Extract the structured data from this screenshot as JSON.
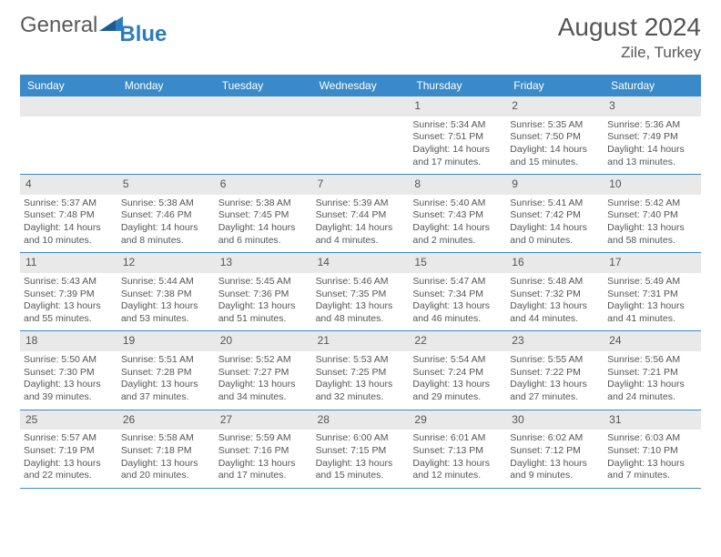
{
  "logo": {
    "text_general": "General",
    "text_blue": "Blue"
  },
  "header": {
    "month_title": "August 2024",
    "location": "Zile, Turkey"
  },
  "colors": {
    "header_bar": "#3a8ac9",
    "header_text": "#ffffff",
    "daynum_bg": "#e9e9e9",
    "body_text": "#555555",
    "rule": "#3a8ac9"
  },
  "day_names": [
    "Sunday",
    "Monday",
    "Tuesday",
    "Wednesday",
    "Thursday",
    "Friday",
    "Saturday"
  ],
  "weeks": [
    [
      {
        "empty": true
      },
      {
        "empty": true
      },
      {
        "empty": true
      },
      {
        "empty": true
      },
      {
        "num": "1",
        "sunrise": "Sunrise: 5:34 AM",
        "sunset": "Sunset: 7:51 PM",
        "daylight": "Daylight: 14 hours and 17 minutes."
      },
      {
        "num": "2",
        "sunrise": "Sunrise: 5:35 AM",
        "sunset": "Sunset: 7:50 PM",
        "daylight": "Daylight: 14 hours and 15 minutes."
      },
      {
        "num": "3",
        "sunrise": "Sunrise: 5:36 AM",
        "sunset": "Sunset: 7:49 PM",
        "daylight": "Daylight: 14 hours and 13 minutes."
      }
    ],
    [
      {
        "num": "4",
        "sunrise": "Sunrise: 5:37 AM",
        "sunset": "Sunset: 7:48 PM",
        "daylight": "Daylight: 14 hours and 10 minutes."
      },
      {
        "num": "5",
        "sunrise": "Sunrise: 5:38 AM",
        "sunset": "Sunset: 7:46 PM",
        "daylight": "Daylight: 14 hours and 8 minutes."
      },
      {
        "num": "6",
        "sunrise": "Sunrise: 5:38 AM",
        "sunset": "Sunset: 7:45 PM",
        "daylight": "Daylight: 14 hours and 6 minutes."
      },
      {
        "num": "7",
        "sunrise": "Sunrise: 5:39 AM",
        "sunset": "Sunset: 7:44 PM",
        "daylight": "Daylight: 14 hours and 4 minutes."
      },
      {
        "num": "8",
        "sunrise": "Sunrise: 5:40 AM",
        "sunset": "Sunset: 7:43 PM",
        "daylight": "Daylight: 14 hours and 2 minutes."
      },
      {
        "num": "9",
        "sunrise": "Sunrise: 5:41 AM",
        "sunset": "Sunset: 7:42 PM",
        "daylight": "Daylight: 14 hours and 0 minutes."
      },
      {
        "num": "10",
        "sunrise": "Sunrise: 5:42 AM",
        "sunset": "Sunset: 7:40 PM",
        "daylight": "Daylight: 13 hours and 58 minutes."
      }
    ],
    [
      {
        "num": "11",
        "sunrise": "Sunrise: 5:43 AM",
        "sunset": "Sunset: 7:39 PM",
        "daylight": "Daylight: 13 hours and 55 minutes."
      },
      {
        "num": "12",
        "sunrise": "Sunrise: 5:44 AM",
        "sunset": "Sunset: 7:38 PM",
        "daylight": "Daylight: 13 hours and 53 minutes."
      },
      {
        "num": "13",
        "sunrise": "Sunrise: 5:45 AM",
        "sunset": "Sunset: 7:36 PM",
        "daylight": "Daylight: 13 hours and 51 minutes."
      },
      {
        "num": "14",
        "sunrise": "Sunrise: 5:46 AM",
        "sunset": "Sunset: 7:35 PM",
        "daylight": "Daylight: 13 hours and 48 minutes."
      },
      {
        "num": "15",
        "sunrise": "Sunrise: 5:47 AM",
        "sunset": "Sunset: 7:34 PM",
        "daylight": "Daylight: 13 hours and 46 minutes."
      },
      {
        "num": "16",
        "sunrise": "Sunrise: 5:48 AM",
        "sunset": "Sunset: 7:32 PM",
        "daylight": "Daylight: 13 hours and 44 minutes."
      },
      {
        "num": "17",
        "sunrise": "Sunrise: 5:49 AM",
        "sunset": "Sunset: 7:31 PM",
        "daylight": "Daylight: 13 hours and 41 minutes."
      }
    ],
    [
      {
        "num": "18",
        "sunrise": "Sunrise: 5:50 AM",
        "sunset": "Sunset: 7:30 PM",
        "daylight": "Daylight: 13 hours and 39 minutes."
      },
      {
        "num": "19",
        "sunrise": "Sunrise: 5:51 AM",
        "sunset": "Sunset: 7:28 PM",
        "daylight": "Daylight: 13 hours and 37 minutes."
      },
      {
        "num": "20",
        "sunrise": "Sunrise: 5:52 AM",
        "sunset": "Sunset: 7:27 PM",
        "daylight": "Daylight: 13 hours and 34 minutes."
      },
      {
        "num": "21",
        "sunrise": "Sunrise: 5:53 AM",
        "sunset": "Sunset: 7:25 PM",
        "daylight": "Daylight: 13 hours and 32 minutes."
      },
      {
        "num": "22",
        "sunrise": "Sunrise: 5:54 AM",
        "sunset": "Sunset: 7:24 PM",
        "daylight": "Daylight: 13 hours and 29 minutes."
      },
      {
        "num": "23",
        "sunrise": "Sunrise: 5:55 AM",
        "sunset": "Sunset: 7:22 PM",
        "daylight": "Daylight: 13 hours and 27 minutes."
      },
      {
        "num": "24",
        "sunrise": "Sunrise: 5:56 AM",
        "sunset": "Sunset: 7:21 PM",
        "daylight": "Daylight: 13 hours and 24 minutes."
      }
    ],
    [
      {
        "num": "25",
        "sunrise": "Sunrise: 5:57 AM",
        "sunset": "Sunset: 7:19 PM",
        "daylight": "Daylight: 13 hours and 22 minutes."
      },
      {
        "num": "26",
        "sunrise": "Sunrise: 5:58 AM",
        "sunset": "Sunset: 7:18 PM",
        "daylight": "Daylight: 13 hours and 20 minutes."
      },
      {
        "num": "27",
        "sunrise": "Sunrise: 5:59 AM",
        "sunset": "Sunset: 7:16 PM",
        "daylight": "Daylight: 13 hours and 17 minutes."
      },
      {
        "num": "28",
        "sunrise": "Sunrise: 6:00 AM",
        "sunset": "Sunset: 7:15 PM",
        "daylight": "Daylight: 13 hours and 15 minutes."
      },
      {
        "num": "29",
        "sunrise": "Sunrise: 6:01 AM",
        "sunset": "Sunset: 7:13 PM",
        "daylight": "Daylight: 13 hours and 12 minutes."
      },
      {
        "num": "30",
        "sunrise": "Sunrise: 6:02 AM",
        "sunset": "Sunset: 7:12 PM",
        "daylight": "Daylight: 13 hours and 9 minutes."
      },
      {
        "num": "31",
        "sunrise": "Sunrise: 6:03 AM",
        "sunset": "Sunset: 7:10 PM",
        "daylight": "Daylight: 13 hours and 7 minutes."
      }
    ]
  ]
}
